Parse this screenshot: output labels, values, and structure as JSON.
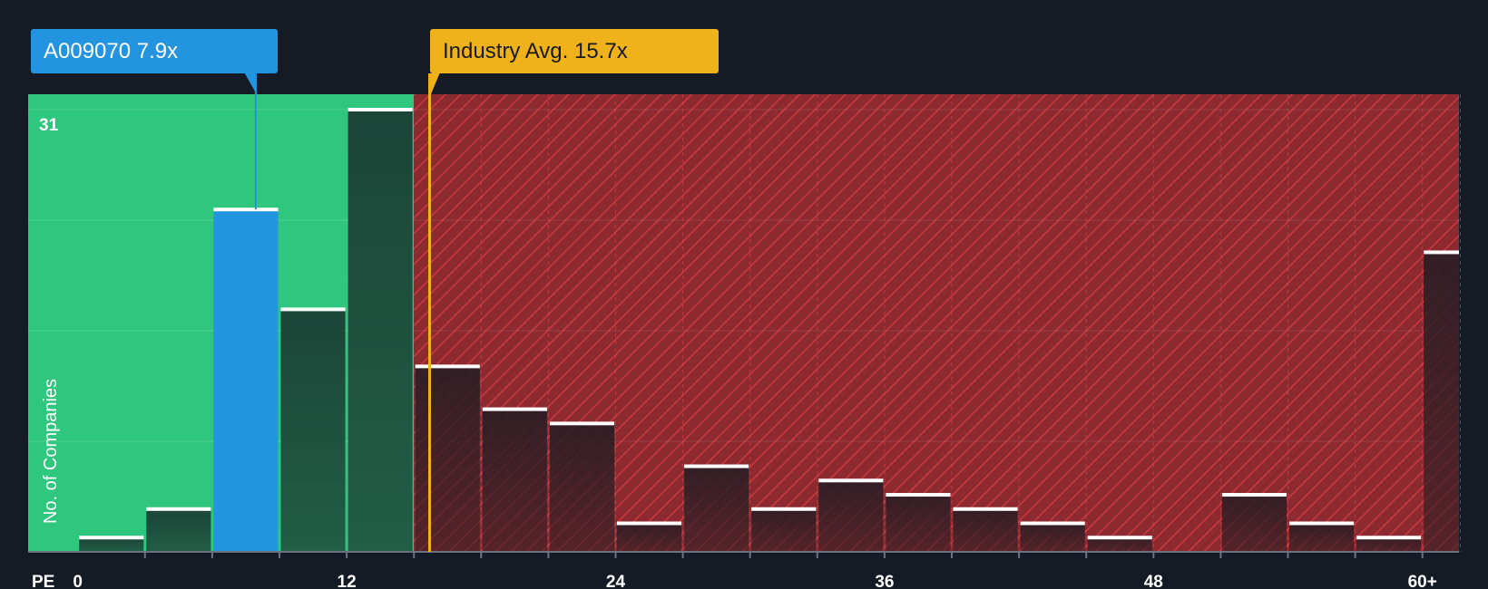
{
  "colors": {
    "background": "#151b24",
    "undervalued_zone": "#2ec77d",
    "overvalued_zone": "#8c2a30",
    "overvalued_hatch": "#cc3a41",
    "company_bar": "#2394e0",
    "industry_marker": "#efb21b",
    "bar_dark": "#1c4a39"
  },
  "company_badge": {
    "ticker": "A009070",
    "value": "7.9x"
  },
  "industry_badge": {
    "label": "Industry Avg.",
    "value": "15.7x"
  },
  "chart_data": {
    "type": "bar",
    "title": "",
    "xlabel": "PE",
    "ylabel": "No. of Companies",
    "x_tick_labels": [
      "0",
      "12",
      "24",
      "36",
      "48",
      "60+"
    ],
    "x_ticks": [
      0,
      12,
      24,
      36,
      48,
      60
    ],
    "y_max_label": "31",
    "ylim": [
      0,
      31
    ],
    "xlim": [
      0,
      61.3
    ],
    "bin_width": 3,
    "bin_starts": [
      0,
      3,
      6,
      9,
      12,
      15,
      18,
      21,
      24,
      27,
      30,
      33,
      36,
      39,
      42,
      45,
      48,
      51,
      54,
      57,
      60
    ],
    "values": [
      1,
      3,
      24,
      17,
      31,
      13,
      10,
      9,
      2,
      6,
      3,
      5,
      4,
      3,
      2,
      1,
      0,
      4,
      2,
      1,
      21
    ],
    "company_value": 7.9,
    "company_bin_index": 2,
    "industry_average": 15.7,
    "grid": true,
    "gridline_values": [
      7.75,
      15.5,
      23.25,
      31
    ]
  }
}
